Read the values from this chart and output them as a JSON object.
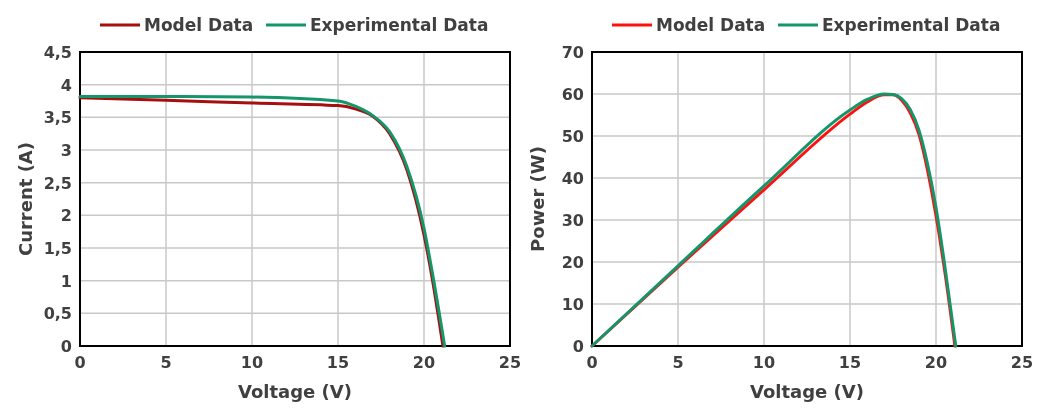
{
  "chart_data": [
    {
      "type": "line",
      "xlabel": "Voltage (V)",
      "ylabel": "Current (A)",
      "xlim": [
        0,
        25
      ],
      "xticks": [
        0,
        5,
        10,
        15,
        20,
        25
      ],
      "ylim": [
        0,
        4.5
      ],
      "yticks": [
        0,
        {
          "value": 0.5,
          "label": "0,5"
        },
        1,
        {
          "value": 1.5,
          "label": "1,5"
        },
        2,
        {
          "value": 2.5,
          "label": "2,5"
        },
        3,
        {
          "value": 3.5,
          "label": "3,5"
        },
        4,
        {
          "value": 4.5,
          "label": "4,5"
        }
      ],
      "grid": true,
      "legend": "top",
      "marker": "none",
      "line_style": "solid",
      "series": [
        {
          "name": "Model Data",
          "color": "#a50f0f",
          "x": [
            0,
            5,
            10,
            15,
            16,
            17,
            18,
            19,
            20,
            20.5,
            21.1
          ],
          "values": [
            3.8,
            3.76,
            3.72,
            3.68,
            3.63,
            3.52,
            3.25,
            2.7,
            1.7,
            1.0,
            0
          ]
        },
        {
          "name": "Experimental Data",
          "color": "#14956a",
          "x": [
            0,
            5,
            10,
            15,
            16,
            17,
            18,
            19,
            20,
            20.5,
            21.2
          ],
          "values": [
            3.82,
            3.82,
            3.81,
            3.75,
            3.67,
            3.53,
            3.28,
            2.75,
            1.8,
            1.1,
            0
          ]
        }
      ]
    },
    {
      "type": "line",
      "xlabel": "Voltage (V)",
      "ylabel": "Power (W)",
      "xlim": [
        0,
        25
      ],
      "xticks": [
        0,
        5,
        10,
        15,
        20,
        25
      ],
      "ylim": [
        0,
        70
      ],
      "yticks": [
        0,
        10,
        20,
        30,
        40,
        50,
        60,
        70
      ],
      "grid": true,
      "legend": "top",
      "marker": "none",
      "line_style": "solid",
      "series": [
        {
          "name": "Model Data",
          "color": "#ff1010",
          "x": [
            0,
            5,
            10,
            15,
            16,
            17,
            17.5,
            18,
            18.5,
            19,
            19.5,
            20,
            20.5,
            21.1
          ],
          "values": [
            0,
            18.8,
            37.2,
            55.2,
            58.1,
            59.8,
            59.8,
            58.5,
            55.5,
            50.5,
            42,
            31,
            18,
            0
          ]
        },
        {
          "name": "Experimental Data",
          "color": "#14956a",
          "x": [
            0,
            5,
            10,
            15,
            16,
            17,
            17.5,
            18,
            18.5,
            19,
            19.5,
            20,
            20.5,
            21.15
          ],
          "values": [
            0,
            19.1,
            38.1,
            56.2,
            58.7,
            60,
            59.9,
            58.9,
            56.3,
            51.5,
            43.5,
            33,
            19.5,
            0
          ]
        }
      ]
    }
  ]
}
